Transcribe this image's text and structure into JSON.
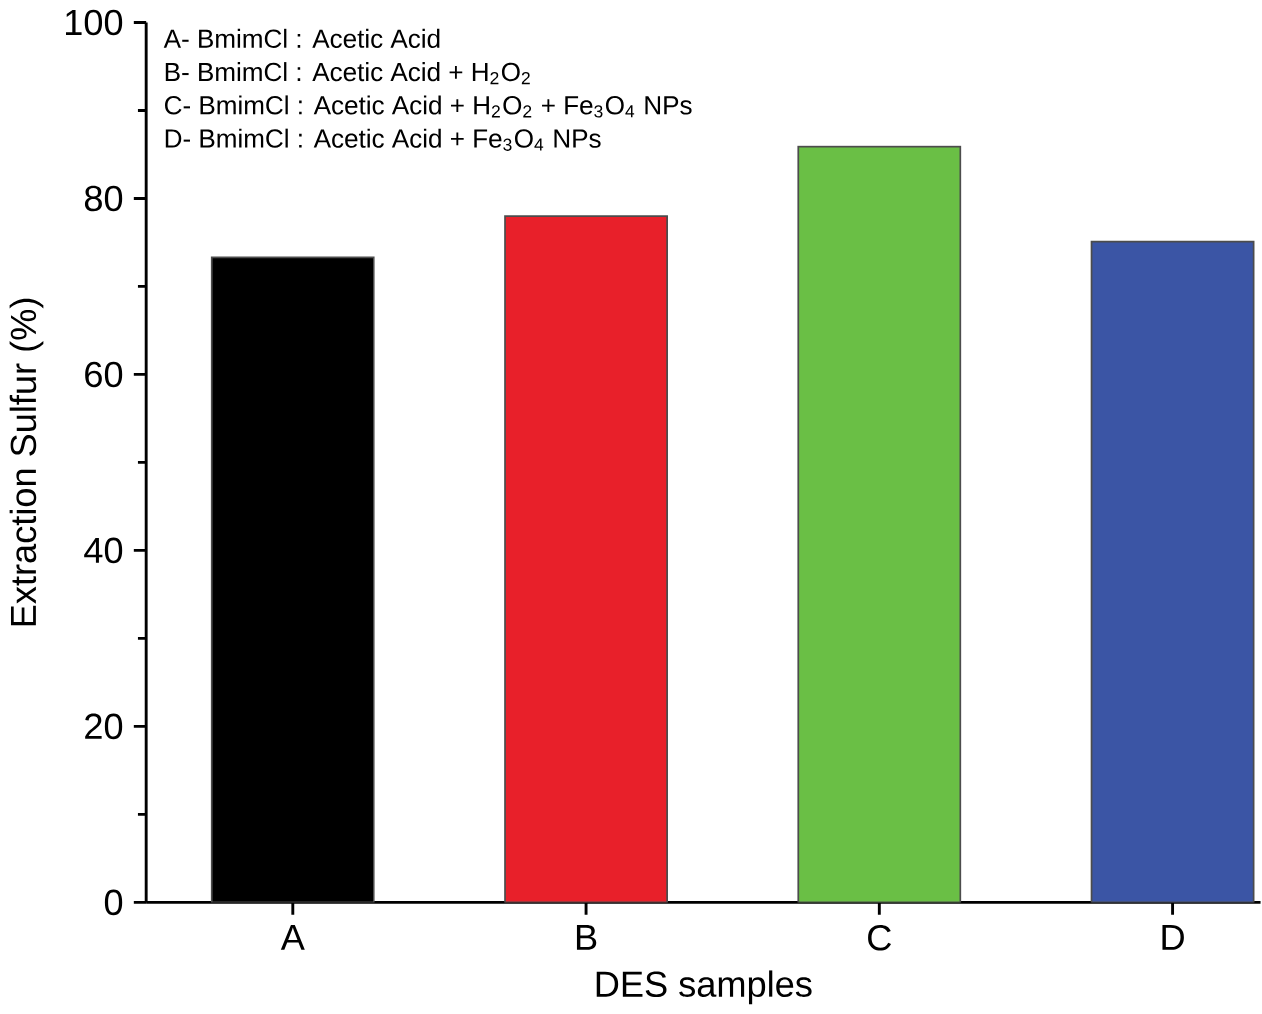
{
  "chart_data": {
    "type": "bar",
    "xlabel": "DES samples",
    "ylabel": "Extraction Sulfur (%)",
    "categories": [
      "A",
      "B",
      "C",
      "D"
    ],
    "values": [
      73.3,
      78.0,
      85.9,
      75.1
    ],
    "colors": [
      "#000000",
      "#e8202a",
      "#6abf45",
      "#3b55a5"
    ],
    "ylim": [
      0,
      100
    ],
    "yticks": [
      0,
      20,
      40,
      60,
      80,
      100
    ],
    "grid": false,
    "annotations": [
      "A- BmimCl : Acetic Acid",
      "B- BmimCl : Acetic Acid + H$_{2}$O$_{2}$",
      "C- BmimCl : Acetic Acid + H$_{2}$O$_{2}$ +  Fe$_{3}$O$_{4}$ NPs",
      "D- BmimCl : Acetic Acid + Fe$_{3}$O$_{4}$ NPs"
    ]
  }
}
